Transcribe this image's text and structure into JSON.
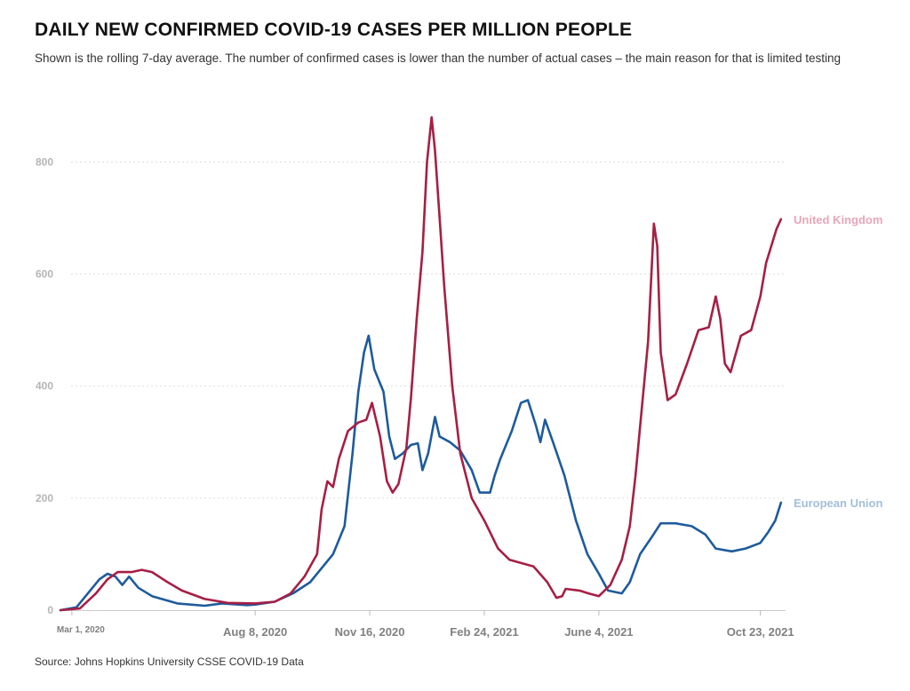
{
  "chart_data": {
    "type": "line",
    "title": "DAILY NEW CONFIRMED COVID-19 CASES PER MILLION PEOPLE",
    "subtitle": "Shown is the rolling 7-day average. The number of confirmed cases is lower than the number of actual cases – the main reason for that is limited testing",
    "source": "Source: Johns Hopkins University CSSE COVID-19 Data",
    "xlabel": "",
    "ylabel": "",
    "x_range": [
      "2020-02-20",
      "2021-11-14"
    ],
    "ylim": [
      0,
      880
    ],
    "y_ticks": [
      "0",
      "200",
      "400",
      "600",
      "800"
    ],
    "x_ticks": [
      {
        "date": "2020-03-01",
        "label": "Mar 1, 2020"
      },
      {
        "date": "2020-08-08",
        "label": "Aug 8, 2020"
      },
      {
        "date": "2020-11-16",
        "label": "Nov 16, 2020"
      },
      {
        "date": "2021-02-24",
        "label": "Feb 24, 2021"
      },
      {
        "date": "2021-06-04",
        "label": "June 4, 2021"
      },
      {
        "date": "2021-10-23",
        "label": "Oct 23, 2021"
      }
    ],
    "grid": true,
    "legend": "end-of-line labels",
    "series": [
      {
        "name": "United Kingdom",
        "color": "#a61f45",
        "label_color": "#e8a6b8",
        "points": [
          [
            "2020-02-20",
            0
          ],
          [
            "2020-03-08",
            3
          ],
          [
            "2020-03-22",
            30
          ],
          [
            "2020-04-01",
            55
          ],
          [
            "2020-04-10",
            68
          ],
          [
            "2020-04-22",
            68
          ],
          [
            "2020-05-01",
            72
          ],
          [
            "2020-05-10",
            68
          ],
          [
            "2020-05-22",
            52
          ],
          [
            "2020-06-05",
            35
          ],
          [
            "2020-06-25",
            20
          ],
          [
            "2020-07-15",
            13
          ],
          [
            "2020-08-08",
            12
          ],
          [
            "2020-08-25",
            15
          ],
          [
            "2020-09-08",
            30
          ],
          [
            "2020-09-20",
            60
          ],
          [
            "2020-10-01",
            100
          ],
          [
            "2020-10-05",
            180
          ],
          [
            "2020-10-10",
            230
          ],
          [
            "2020-10-15",
            220
          ],
          [
            "2020-10-20",
            270
          ],
          [
            "2020-10-28",
            320
          ],
          [
            "2020-11-06",
            335
          ],
          [
            "2020-11-13",
            340
          ],
          [
            "2020-11-18",
            370
          ],
          [
            "2020-11-25",
            310
          ],
          [
            "2020-12-01",
            230
          ],
          [
            "2020-12-06",
            210
          ],
          [
            "2020-12-11",
            225
          ],
          [
            "2020-12-18",
            290
          ],
          [
            "2020-12-22",
            380
          ],
          [
            "2020-12-27",
            520
          ],
          [
            "2021-01-01",
            640
          ],
          [
            "2021-01-05",
            800
          ],
          [
            "2021-01-09",
            880
          ],
          [
            "2021-01-12",
            820
          ],
          [
            "2021-01-16",
            700
          ],
          [
            "2021-01-20",
            580
          ],
          [
            "2021-01-27",
            400
          ],
          [
            "2021-02-03",
            280
          ],
          [
            "2021-02-13",
            200
          ],
          [
            "2021-02-24",
            160
          ],
          [
            "2021-03-08",
            110
          ],
          [
            "2021-03-18",
            90
          ],
          [
            "2021-04-08",
            78
          ],
          [
            "2021-04-20",
            50
          ],
          [
            "2021-04-28",
            22
          ],
          [
            "2021-05-03",
            25
          ],
          [
            "2021-05-06",
            38
          ],
          [
            "2021-05-18",
            35
          ],
          [
            "2021-05-26",
            30
          ],
          [
            "2021-06-04",
            25
          ],
          [
            "2021-06-14",
            45
          ],
          [
            "2021-06-24",
            90
          ],
          [
            "2021-07-01",
            150
          ],
          [
            "2021-07-06",
            240
          ],
          [
            "2021-07-11",
            350
          ],
          [
            "2021-07-17",
            480
          ],
          [
            "2021-07-22",
            690
          ],
          [
            "2021-07-25",
            650
          ],
          [
            "2021-07-28",
            460
          ],
          [
            "2021-08-03",
            375
          ],
          [
            "2021-08-10",
            385
          ],
          [
            "2021-08-20",
            440
          ],
          [
            "2021-08-30",
            500
          ],
          [
            "2021-09-08",
            505
          ],
          [
            "2021-09-14",
            560
          ],
          [
            "2021-09-18",
            520
          ],
          [
            "2021-09-22",
            440
          ],
          [
            "2021-09-27",
            425
          ],
          [
            "2021-10-06",
            490
          ],
          [
            "2021-10-15",
            500
          ],
          [
            "2021-10-23",
            560
          ],
          [
            "2021-10-28",
            620
          ],
          [
            "2021-11-06",
            680
          ],
          [
            "2021-11-10",
            698
          ]
        ]
      },
      {
        "name": "European Union",
        "color": "#1e5b9c",
        "label_color": "#a3bfdc",
        "points": [
          [
            "2020-02-20",
            0
          ],
          [
            "2020-03-05",
            5
          ],
          [
            "2020-03-15",
            30
          ],
          [
            "2020-03-25",
            55
          ],
          [
            "2020-04-01",
            65
          ],
          [
            "2020-04-08",
            60
          ],
          [
            "2020-04-14",
            45
          ],
          [
            "2020-04-20",
            60
          ],
          [
            "2020-04-28",
            40
          ],
          [
            "2020-05-10",
            25
          ],
          [
            "2020-06-01",
            12
          ],
          [
            "2020-06-25",
            8
          ],
          [
            "2020-07-10",
            12
          ],
          [
            "2020-08-01",
            9
          ],
          [
            "2020-08-08",
            10
          ],
          [
            "2020-08-25",
            15
          ],
          [
            "2020-09-10",
            30
          ],
          [
            "2020-09-25",
            50
          ],
          [
            "2020-10-05",
            75
          ],
          [
            "2020-10-15",
            100
          ],
          [
            "2020-10-25",
            150
          ],
          [
            "2020-11-01",
            280
          ],
          [
            "2020-11-06",
            390
          ],
          [
            "2020-11-11",
            460
          ],
          [
            "2020-11-15",
            490
          ],
          [
            "2020-11-20",
            430
          ],
          [
            "2020-11-28",
            390
          ],
          [
            "2020-12-03",
            310
          ],
          [
            "2020-12-08",
            270
          ],
          [
            "2020-12-15",
            280
          ],
          [
            "2020-12-22",
            295
          ],
          [
            "2020-12-28",
            298
          ],
          [
            "2021-01-01",
            250
          ],
          [
            "2021-01-06",
            280
          ],
          [
            "2021-01-12",
            345
          ],
          [
            "2021-01-16",
            310
          ],
          [
            "2021-01-25",
            300
          ],
          [
            "2021-02-03",
            285
          ],
          [
            "2021-02-13",
            250
          ],
          [
            "2021-02-20",
            210
          ],
          [
            "2021-03-01",
            210
          ],
          [
            "2021-03-05",
            240
          ],
          [
            "2021-03-10",
            270
          ],
          [
            "2021-03-20",
            320
          ],
          [
            "2021-03-28",
            370
          ],
          [
            "2021-04-03",
            375
          ],
          [
            "2021-04-10",
            330
          ],
          [
            "2021-04-14",
            300
          ],
          [
            "2021-04-18",
            340
          ],
          [
            "2021-04-25",
            300
          ],
          [
            "2021-05-05",
            240
          ],
          [
            "2021-05-15",
            160
          ],
          [
            "2021-05-25",
            100
          ],
          [
            "2021-06-04",
            65
          ],
          [
            "2021-06-12",
            35
          ],
          [
            "2021-06-24",
            30
          ],
          [
            "2021-07-01",
            50
          ],
          [
            "2021-07-10",
            100
          ],
          [
            "2021-07-20",
            130
          ],
          [
            "2021-07-28",
            155
          ],
          [
            "2021-08-10",
            155
          ],
          [
            "2021-08-24",
            150
          ],
          [
            "2021-09-05",
            135
          ],
          [
            "2021-09-14",
            110
          ],
          [
            "2021-09-28",
            105
          ],
          [
            "2021-10-10",
            110
          ],
          [
            "2021-10-23",
            120
          ],
          [
            "2021-10-30",
            140
          ],
          [
            "2021-11-05",
            160
          ],
          [
            "2021-11-10",
            192
          ]
        ]
      }
    ]
  }
}
